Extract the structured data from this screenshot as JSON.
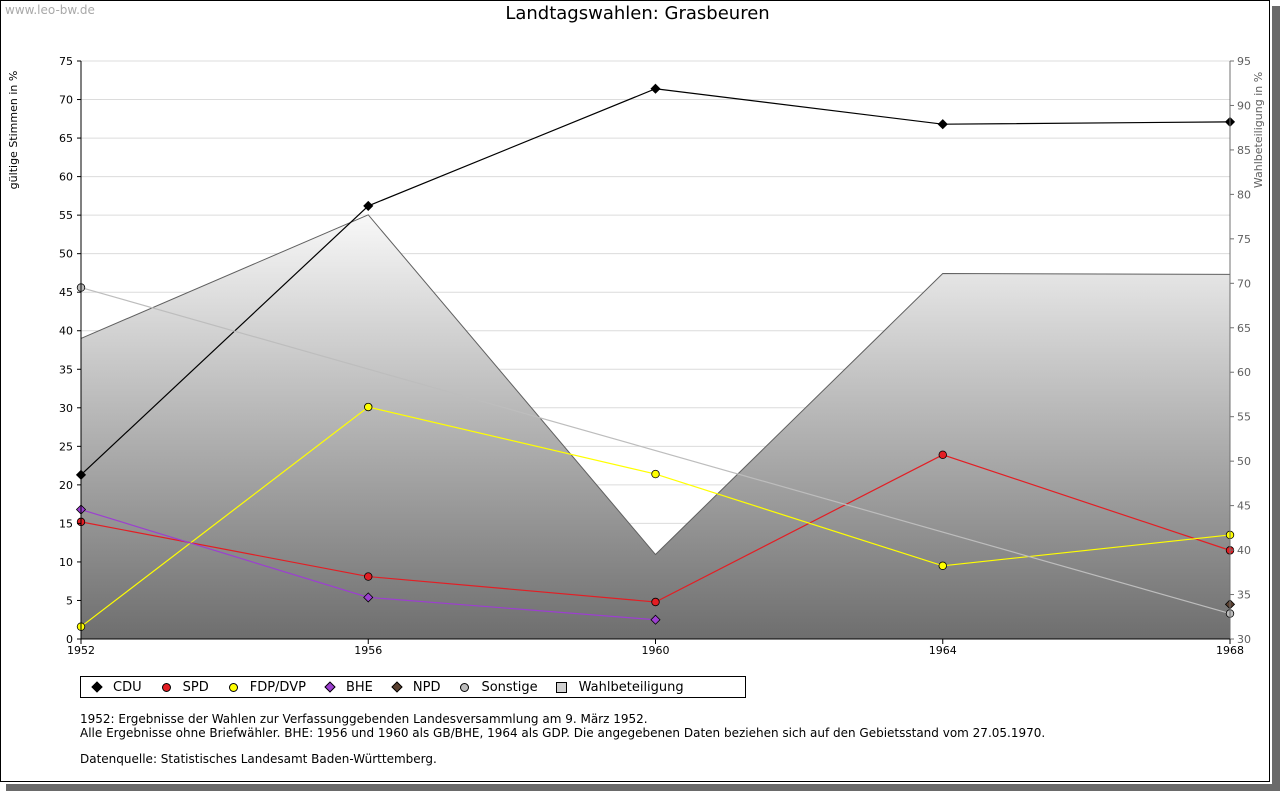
{
  "watermark": "www.leo-bw.de",
  "chart_data": {
    "type": "line",
    "title": "Landtagswahlen: Grasbeuren",
    "ylabel": "gültige Stimmen in %",
    "y2label": "Wahlbeteiligung in %",
    "x": [
      1952,
      1956,
      1960,
      1964,
      1968
    ],
    "xlim": [
      1952,
      1968
    ],
    "ylim": [
      0,
      75
    ],
    "y2lim": [
      30,
      95
    ],
    "yticks": [
      0,
      5,
      10,
      15,
      20,
      25,
      30,
      35,
      40,
      45,
      50,
      55,
      60,
      65,
      70,
      75
    ],
    "y2ticks": [
      30,
      35,
      40,
      45,
      50,
      55,
      60,
      65,
      70,
      75,
      80,
      85,
      90,
      95
    ],
    "grid": true,
    "legend_position": "bottom",
    "series": [
      {
        "name": "CDU",
        "color": "#000000",
        "values": [
          21.3,
          56.2,
          71.4,
          66.8,
          67.1
        ]
      },
      {
        "name": "SPD",
        "color": "#e31e24",
        "values": [
          15.2,
          8.1,
          4.8,
          23.9,
          11.5
        ]
      },
      {
        "name": "FDP/DVP",
        "color": "#ffff00",
        "values": [
          1.6,
          30.1,
          21.4,
          9.5,
          13.5
        ]
      },
      {
        "name": "BHE",
        "color": "#9c3fd0",
        "values": [
          16.8,
          5.4,
          2.5,
          null,
          null
        ]
      },
      {
        "name": "NPD",
        "color": "#5a4030",
        "values": [
          null,
          null,
          null,
          null,
          4.5
        ]
      },
      {
        "name": "Sonstige",
        "color": "#bdbdbd",
        "values": [
          45.6,
          null,
          null,
          null,
          3.3
        ]
      }
    ],
    "area": {
      "name": "Wahlbeteiligung",
      "axis": "right",
      "values": [
        63.8,
        77.7,
        39.5,
        71.1,
        71.0
      ]
    }
  },
  "legend": [
    {
      "label": "CDU",
      "color": "#000000",
      "shape": "diamond"
    },
    {
      "label": "SPD",
      "color": "#e31e24",
      "shape": "circle"
    },
    {
      "label": "FDP/DVP",
      "color": "#ffff00",
      "shape": "circle"
    },
    {
      "label": "BHE",
      "color": "#9c3fd0",
      "shape": "diamond"
    },
    {
      "label": "NPD",
      "color": "#5a4030",
      "shape": "diamond"
    },
    {
      "label": "Sonstige",
      "color": "#bdbdbd",
      "shape": "circle"
    },
    {
      "label": "Wahlbeteiligung",
      "color": "#d0d0d0",
      "shape": "box"
    }
  ],
  "notes": {
    "line1": "1952: Ergebnisse der Wahlen zur Verfassunggebenden Landesversammlung am 9. März 1952.",
    "line2": "Alle Ergebnisse ohne Briefwähler. BHE: 1956 und 1960 als GB/BHE, 1964 als GDP. Die angegebenen Daten beziehen sich auf den Gebietsstand vom 27.05.1970.",
    "source": "Datenquelle: Statistisches Landesamt Baden-Württemberg."
  }
}
